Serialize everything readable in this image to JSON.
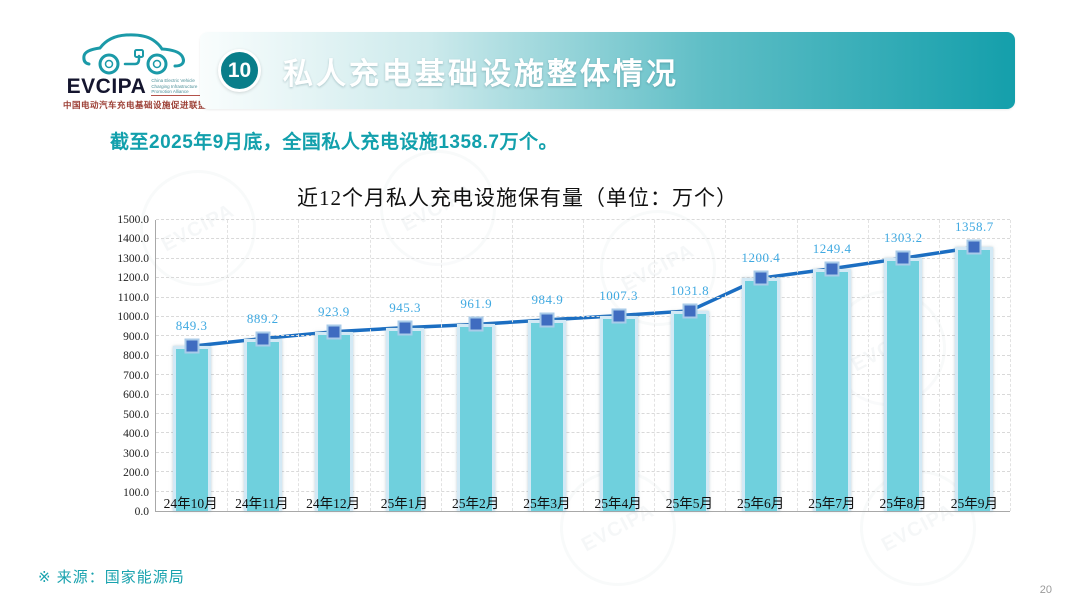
{
  "logo": {
    "brand": "EVCIPA",
    "tagline_en": "China Electric Vehicle Charging Infrastructure Promotion Alliance",
    "tagline_cn": "中国电动汽车充电基础设施促进联盟"
  },
  "header": {
    "badge_number": "10",
    "title": "私人充电基础设施整体情况"
  },
  "subtitle": "截至2025年9月底，全国私人充电设施1358.7万个。",
  "chart_data": {
    "type": "bar",
    "title": "近12个月私人充电设施保有量（单位：万个）",
    "categories": [
      "24年10月",
      "24年11月",
      "24年12月",
      "25年1月",
      "25年2月",
      "25年3月",
      "25年4月",
      "25年5月",
      "25年6月",
      "25年7月",
      "25年8月",
      "25年9月"
    ],
    "values": [
      849.3,
      889.2,
      923.9,
      945.3,
      961.9,
      984.9,
      1007.3,
      1031.8,
      1200.4,
      1249.4,
      1303.2,
      1358.7
    ],
    "line_overlay": true,
    "data_labels": true,
    "xlabel": "",
    "ylabel": "",
    "ylim": [
      0,
      1500
    ],
    "ytick_step": 100,
    "ytick_decimals": 1,
    "grid": true,
    "legend_position": "none",
    "bar_color": "#6fd0dd",
    "bar_border_color": "#d3e9f5",
    "line_color": "#1b6ec2",
    "marker_color": "#3f6cc0",
    "label_color": "#3fa9e1"
  },
  "footer": {
    "source": "※ 来源：国家能源局"
  },
  "page": {
    "page_number": "20"
  }
}
